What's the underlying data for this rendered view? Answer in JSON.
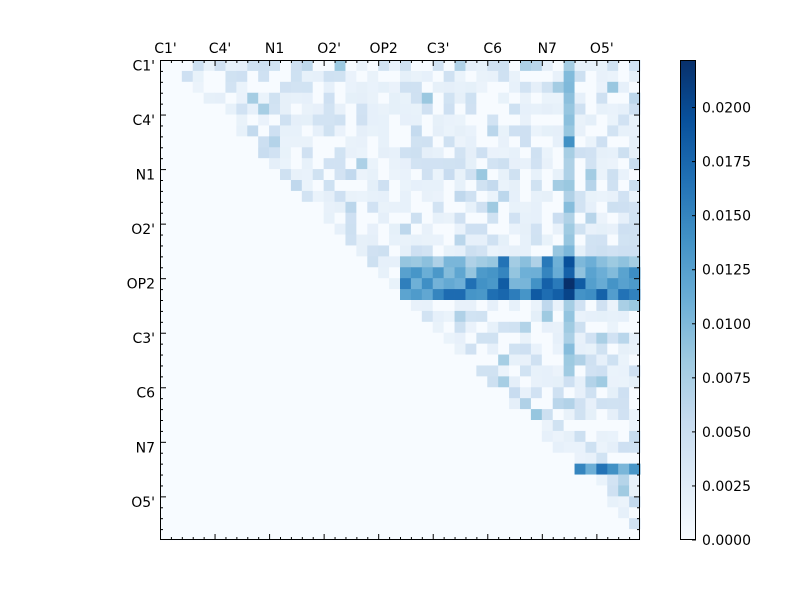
{
  "chart_data": {
    "type": "heatmap",
    "title": "",
    "colormap": "Blues",
    "colormap_stops": [
      "#f7fbff",
      "#deebf7",
      "#c6dbef",
      "#9ecae1",
      "#6baed6",
      "#4292c6",
      "#2171b5",
      "#08519c",
      "#08306b"
    ],
    "n_rows": 44,
    "n_cols": 44,
    "upper_triangle_only": true,
    "vmin": 0.0,
    "vmax": 0.0222,
    "x_tick_labels": [
      "C1'",
      "C4'",
      "N1",
      "O2'",
      "OP2",
      "C3'",
      "C6",
      "N7",
      "O5'"
    ],
    "y_tick_labels": [
      "C1'",
      "C4'",
      "N1",
      "O2'",
      "OP2",
      "C3'",
      "C6",
      "N7",
      "O5'"
    ],
    "tick_every_n_cells": 5,
    "colorbar": {
      "ticks": [
        0.0,
        0.0025,
        0.005,
        0.0075,
        0.01,
        0.0125,
        0.015,
        0.0175,
        0.02
      ],
      "tick_labels": [
        "0.0000",
        "0.0025",
        "0.0050",
        "0.0075",
        "0.0100",
        "0.0125",
        "0.0150",
        "0.0175",
        "0.0200"
      ]
    },
    "highlights": [
      {
        "row": 18,
        "col_start": 22,
        "col_end": 43,
        "value": 0.009
      },
      {
        "row": 19,
        "col_start": 22,
        "col_end": 43,
        "value": 0.0115
      },
      {
        "row": 20,
        "col_start": 22,
        "col_end": 43,
        "value": 0.0135
      },
      {
        "row": 21,
        "col_start": 22,
        "col_end": 43,
        "value": 0.015
      },
      {
        "col": 37,
        "row_start": 0,
        "row_end": 27,
        "value": 0.0085
      },
      {
        "row": 37,
        "col_start": 38,
        "col_end": 43,
        "value": 0.013
      }
    ],
    "hot_cells": [
      {
        "row": 18,
        "col": 31,
        "value": 0.0165
      },
      {
        "row": 19,
        "col": 31,
        "value": 0.015
      },
      {
        "row": 20,
        "col": 31,
        "value": 0.0185
      },
      {
        "row": 21,
        "col": 31,
        "value": 0.0175
      },
      {
        "row": 18,
        "col": 35,
        "value": 0.016
      },
      {
        "row": 19,
        "col": 35,
        "value": 0.015
      },
      {
        "row": 20,
        "col": 35,
        "value": 0.018
      },
      {
        "row": 21,
        "col": 35,
        "value": 0.017
      },
      {
        "row": 18,
        "col": 37,
        "value": 0.0195
      },
      {
        "row": 19,
        "col": 37,
        "value": 0.018
      },
      {
        "row": 20,
        "col": 37,
        "value": 0.0222
      },
      {
        "row": 21,
        "col": 37,
        "value": 0.0205
      },
      {
        "row": 20,
        "col": 38,
        "value": 0.0185
      },
      {
        "row": 7,
        "col": 37,
        "value": 0.014
      },
      {
        "row": 37,
        "col": 38,
        "value": 0.015
      },
      {
        "row": 37,
        "col": 40,
        "value": 0.0165
      },
      {
        "row": 37,
        "col": 41,
        "value": 0.014
      }
    ]
  }
}
